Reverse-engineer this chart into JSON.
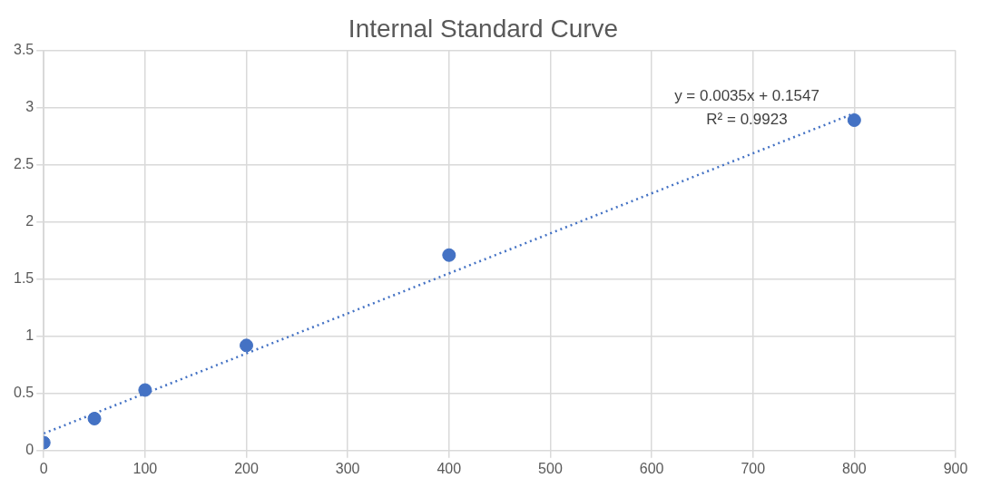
{
  "chart_data": {
    "type": "scatter",
    "title": "Internal Standard Curve",
    "series": [
      {
        "type": "scatter",
        "color": "#4472c4",
        "x": [
          0,
          50,
          100,
          200,
          400,
          800
        ],
        "values": [
          0.07,
          0.28,
          0.53,
          0.92,
          1.71,
          2.89
        ],
        "marker": "circle"
      },
      {
        "type": "line",
        "color": "#4472c4",
        "x": [
          0,
          800
        ],
        "values": [
          0.15,
          2.95
        ],
        "marker": "none",
        "line_style": "dotted"
      }
    ],
    "xlim": [
      0,
      900
    ],
    "xticks": [
      0,
      100,
      200,
      300,
      400,
      500,
      600,
      700,
      800,
      900
    ],
    "ylim": [
      0,
      3.5
    ],
    "yticks": [
      0,
      0.5,
      1,
      1.5,
      2,
      2.5,
      3,
      3.5
    ],
    "grid": true,
    "legend": false,
    "annotations": [
      "y = 0.0035x + 0.1547",
      "R² = 0.9923"
    ]
  }
}
